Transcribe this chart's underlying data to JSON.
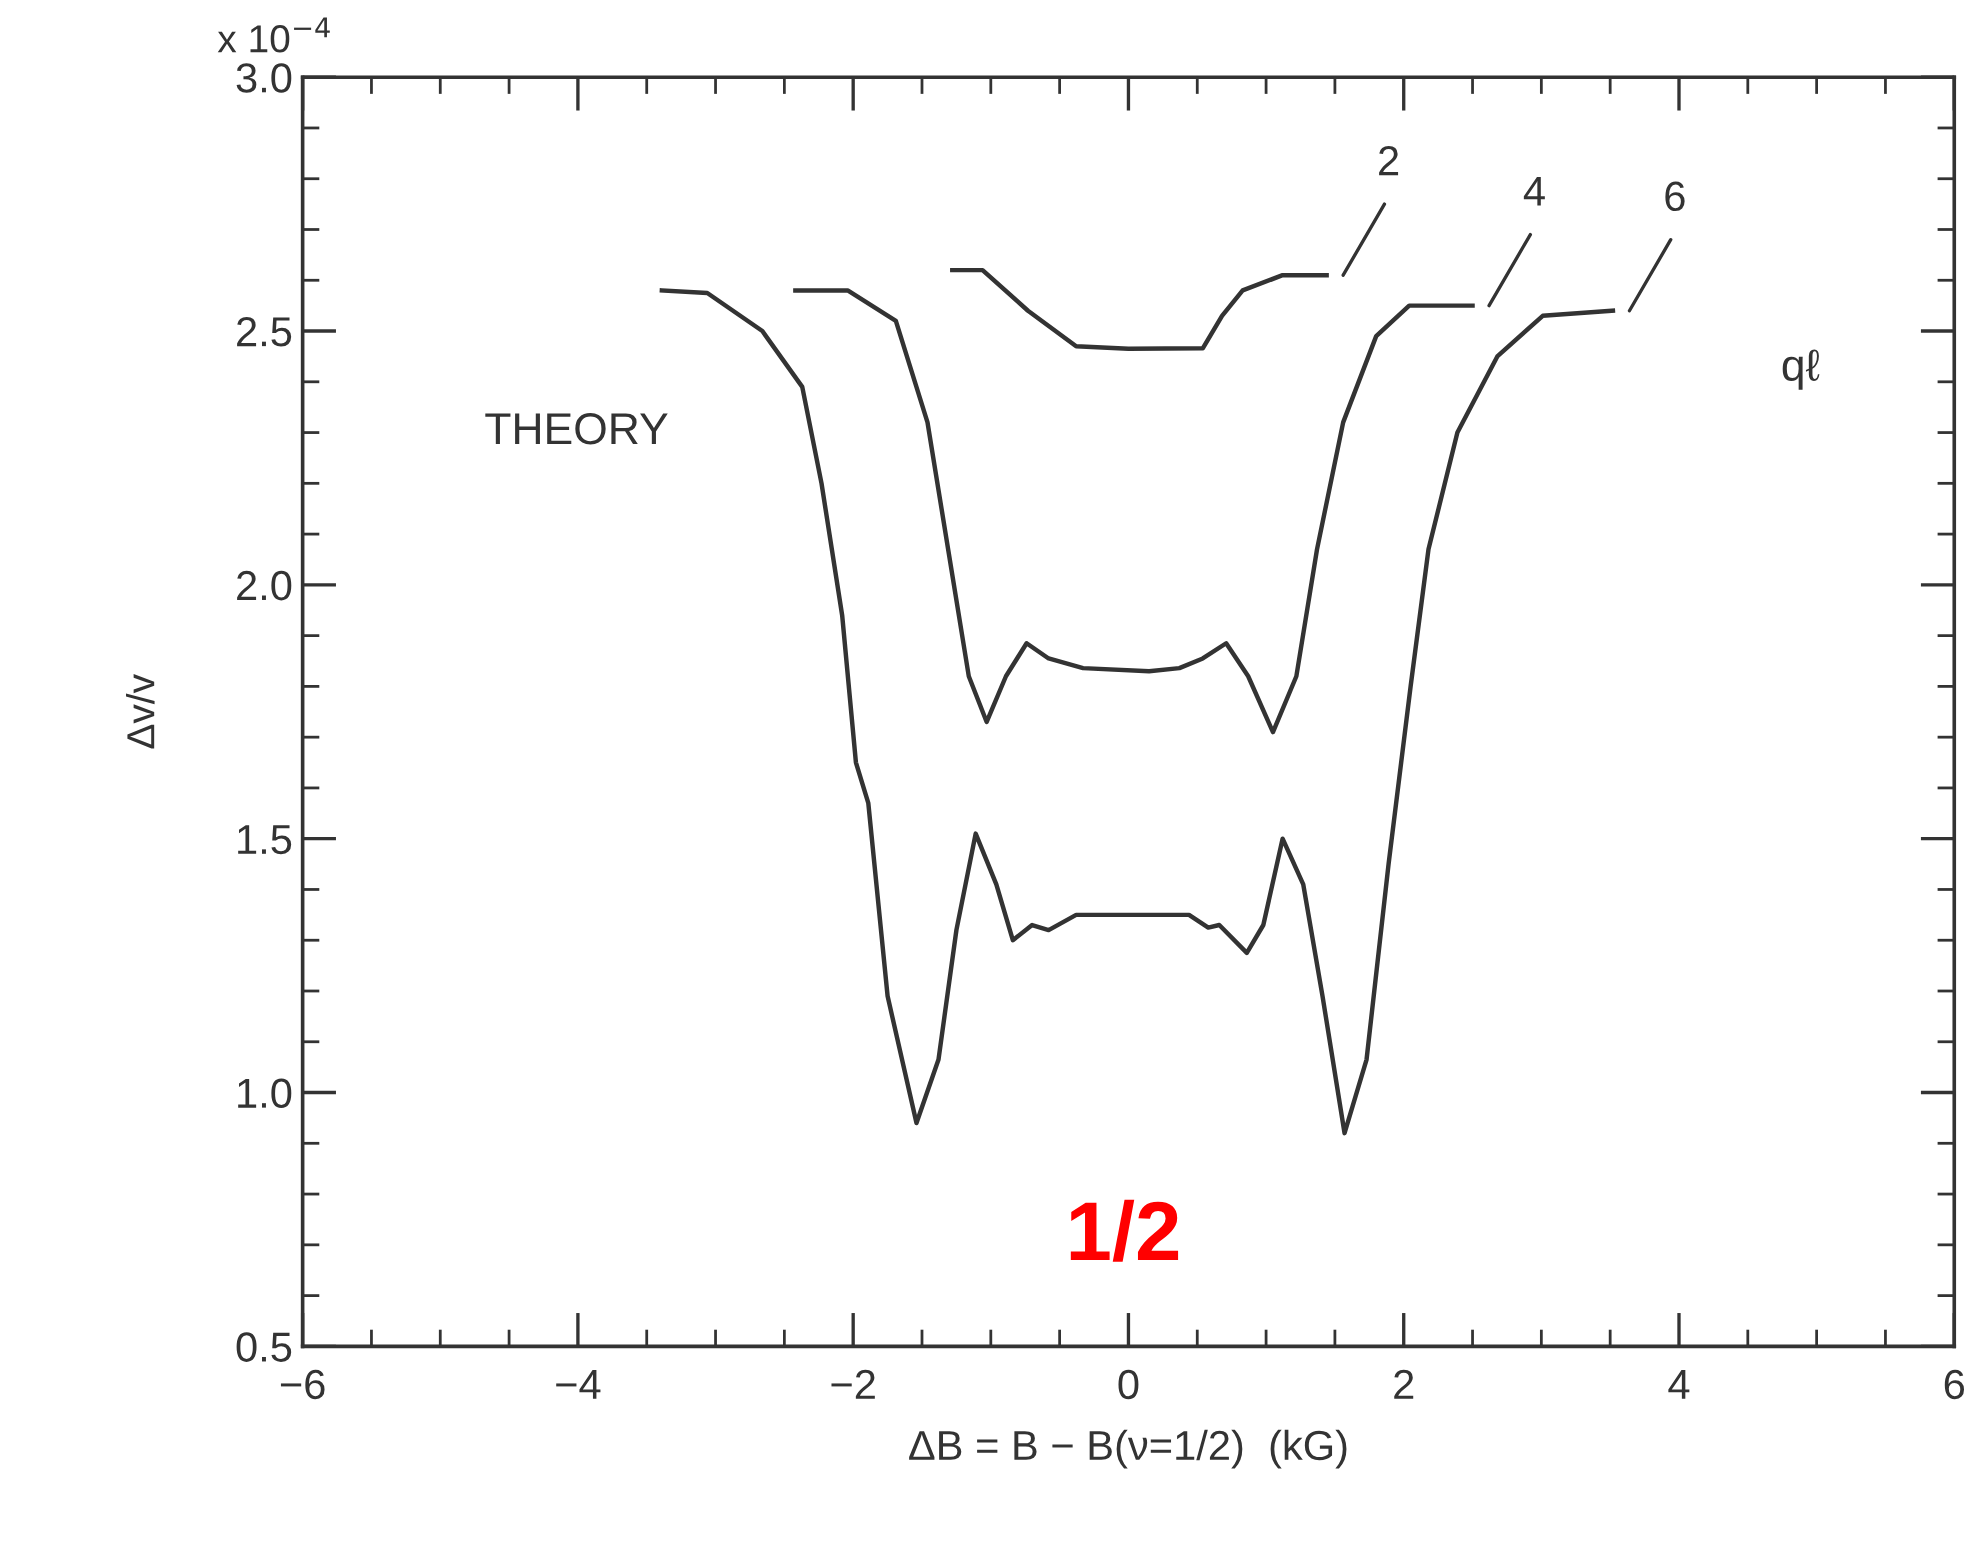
{
  "chart_data": {
    "type": "line",
    "xlabel": "ΔB = B − B(ν=1/2)  (kG)",
    "ylabel": "Δv/v",
    "xlim": [
      -6,
      6
    ],
    "ylim": [
      0.5,
      3.0
    ],
    "xticks": [
      {
        "value": -6,
        "label": "−6"
      },
      {
        "value": -4,
        "label": "−4"
      },
      {
        "value": -2,
        "label": "−2"
      },
      0,
      2,
      4,
      6
    ],
    "yticks": [
      {
        "value": 0.5,
        "label": "0.5"
      },
      {
        "value": 1.0,
        "label": "1.0"
      },
      {
        "value": 1.5,
        "label": "1.5"
      },
      {
        "value": 2.0,
        "label": "2.0"
      },
      {
        "value": 2.5,
        "label": "2.5"
      },
      {
        "value": 3.0,
        "label": "3.0"
      }
    ],
    "grid": false,
    "legend": "top right",
    "marker": "none",
    "line_style": "solid",
    "series": [
      {
        "name": "2",
        "color": "#333333",
        "x": [
          -1.28,
          -1.06,
          -0.73,
          -0.38,
          0.0,
          0.54,
          0.68,
          0.83,
          1.12,
          1.44
        ],
        "values": [
          2.62,
          2.62,
          2.54,
          2.47,
          2.465,
          2.466,
          2.53,
          2.58,
          2.61,
          2.61
        ]
      },
      {
        "name": "4",
        "color": "#333333",
        "x": [
          -2.42,
          -2.04,
          -1.69,
          -1.46,
          -1.31,
          -1.16,
          -1.03,
          -0.89,
          -0.74,
          -0.58,
          -0.33,
          0.15,
          0.37,
          0.54,
          0.71,
          0.87,
          1.05,
          1.22,
          1.37,
          1.56,
          1.8,
          2.04,
          2.5
        ],
        "values": [
          2.58,
          2.58,
          2.52,
          2.32,
          2.07,
          1.82,
          1.73,
          1.82,
          1.885,
          1.855,
          1.836,
          1.83,
          1.836,
          1.855,
          1.885,
          1.82,
          1.71,
          1.82,
          2.07,
          2.32,
          2.49,
          2.55,
          2.55
        ]
      },
      {
        "name": "6",
        "color": "#333333",
        "x": [
          -3.39,
          -3.06,
          -2.66,
          -2.37,
          -2.23,
          -2.08,
          -1.98,
          -1.89,
          -1.75,
          -1.54,
          -1.38,
          -1.25,
          -1.11,
          -0.96,
          -0.84,
          -0.7,
          -0.58,
          -0.38,
          0.44,
          0.58,
          0.66,
          0.86,
          0.98,
          1.12,
          1.27,
          1.41,
          1.57,
          1.73,
          1.89,
          2.05,
          2.18,
          2.39,
          2.68,
          3.01,
          3.52
        ],
        "values": [
          2.58,
          2.575,
          2.5,
          2.39,
          2.2,
          1.94,
          1.65,
          1.57,
          1.19,
          0.94,
          1.065,
          1.32,
          1.51,
          1.41,
          1.3,
          1.33,
          1.32,
          1.35,
          1.35,
          1.325,
          1.33,
          1.275,
          1.33,
          1.5,
          1.41,
          1.19,
          0.92,
          1.065,
          1.45,
          1.8,
          2.07,
          2.3,
          2.45,
          2.53,
          2.54
        ]
      }
    ],
    "annotations": [
      "qℓ",
      "THEORY",
      "1/2",
      "x 10$^{−4}$"
    ]
  }
}
